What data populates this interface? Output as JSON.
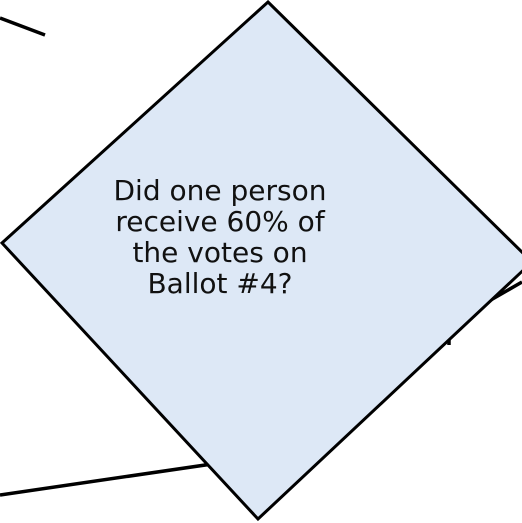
{
  "diagram": {
    "decision": {
      "lines": [
        "Did one person",
        "receive 60% of",
        "the votes on",
        "Ballot #4?"
      ],
      "fill": "#dde8f6",
      "stroke": "#000000"
    },
    "connector_color": "#000000"
  }
}
